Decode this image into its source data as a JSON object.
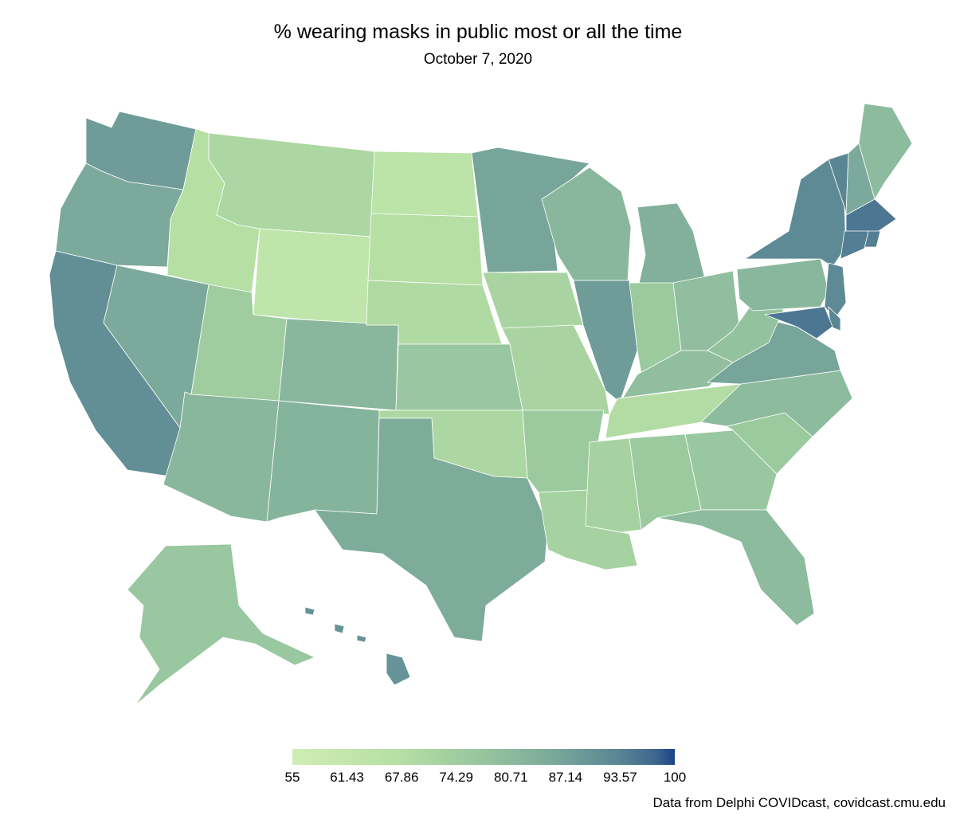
{
  "header": {
    "title": "% wearing masks in public most or all the time",
    "subtitle": "October  7, 2020"
  },
  "legend": {
    "min": 55,
    "max": 100,
    "tick_labels": [
      "55",
      "61.43",
      "67.86",
      "74.29",
      "80.71",
      "87.14",
      "93.57",
      "100"
    ],
    "colors": [
      "#d0edb7",
      "#b9e2a5",
      "#97c69f",
      "#7aa89a",
      "#5f8b94",
      "#4a7491",
      "#1f4a8a"
    ]
  },
  "caption": "Data from Delphi COVIDcast, covidcast.cmu.edu",
  "map_data": {
    "type": "choropleth",
    "states": {
      "WA": 88,
      "OR": 85,
      "CA": 91,
      "NV": 85,
      "ID": 67,
      "MT": 70,
      "WY": 62,
      "UT": 74,
      "AZ": 81,
      "CO": 81,
      "NM": 82,
      "ND": 64,
      "SD": 67,
      "NE": 69,
      "KS": 76,
      "OK": 70,
      "TX": 84,
      "MN": 86,
      "IA": 71,
      "MO": 71,
      "AR": 75,
      "LA": 72,
      "WI": 81,
      "IL": 88,
      "MI": 83,
      "IN": 75,
      "OH": 79,
      "KY": 79,
      "TN": 68,
      "MS": 72,
      "AL": 75,
      "GA": 76,
      "FL": 80,
      "SC": 75,
      "NC": 80,
      "VA": 86,
      "WV": 78,
      "PA": 81,
      "NY": 92,
      "VT": 93,
      "NH": 85,
      "ME": 80,
      "MA": 95,
      "RI": 94,
      "CT": 94,
      "NJ": 92,
      "DE": 93,
      "MD": 95,
      "AK": 76,
      "HI": 90
    }
  }
}
